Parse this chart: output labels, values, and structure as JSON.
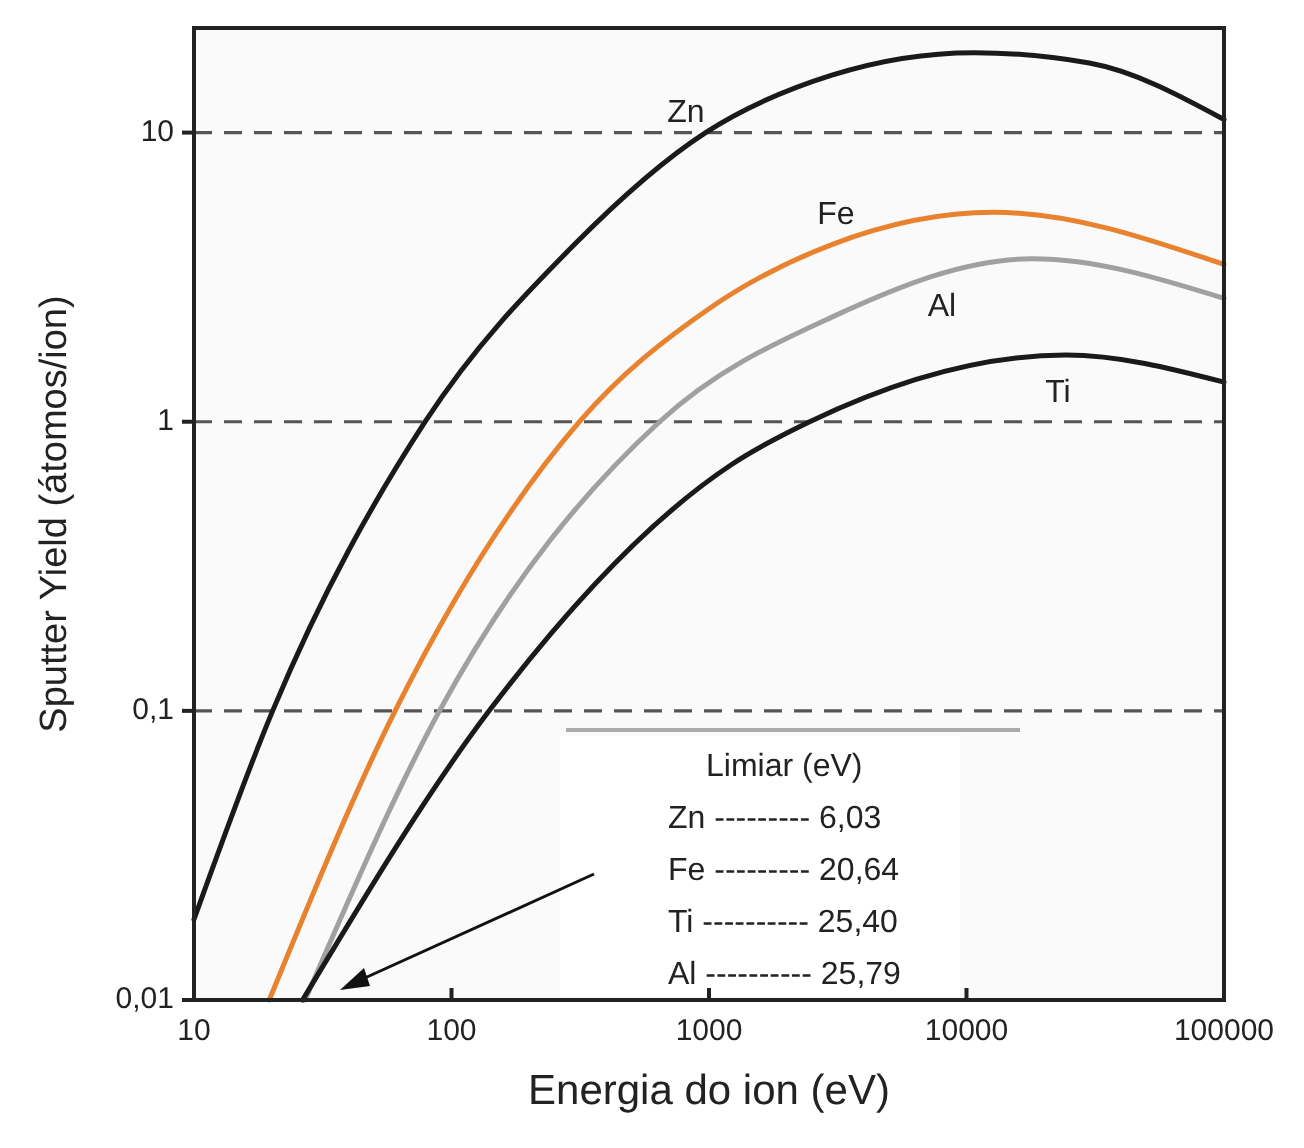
{
  "chart_data": {
    "type": "line",
    "xlabel": "Energia do ion (eV)",
    "ylabel": "Sputter Yield (átomos/ion)",
    "log": "xy",
    "xlim": [
      10,
      100000
    ],
    "ylim": [
      0.01,
      23
    ],
    "xticks": [
      10,
      100,
      1000,
      10000,
      100000
    ],
    "yticks": [
      {
        "value": 0.01,
        "label": "0,01"
      },
      {
        "value": 0.1,
        "label": "0,1"
      },
      {
        "value": 1,
        "label": "1"
      },
      {
        "value": 10,
        "label": "10"
      }
    ],
    "grid": "y",
    "marker": "none",
    "line_style": "solid",
    "series": [
      {
        "name": "Zn",
        "color": "#1a1a1a",
        "x": [
          10,
          20.2,
          79,
          300,
          970,
          3000,
          10700,
          30000,
          100000
        ],
        "values": [
          0.019,
          0.1,
          1,
          4.1,
          10,
          15.8,
          18.9,
          17.4,
          11.1
        ]
      },
      {
        "name": "Fe",
        "color": "#e8822e",
        "x": [
          19.6,
          60.4,
          314,
          1000,
          3000,
          12800,
          100000
        ],
        "values": [
          0.01,
          0.1,
          1,
          2.46,
          4.1,
          5.3,
          3.5
        ]
      },
      {
        "name": "Al",
        "color": "#a0a0a0",
        "x": [
          27,
          89.8,
          643,
          3000,
          18000,
          100000
        ],
        "values": [
          0.01,
          0.1,
          1,
          2.3,
          3.66,
          2.67
        ]
      },
      {
        "name": "Ti",
        "color": "#1a1a1a",
        "x": [
          26.4,
          140,
          1220,
          2460,
          24300,
          100000
        ],
        "values": [
          0.01,
          0.1,
          0.71,
          1,
          1.7,
          1.37
        ]
      }
    ],
    "annotations": [
      "Limiar (eV)",
      "Zn --------- 6,03",
      "Fe --------- 20,64",
      "Ti ---------- 25,40",
      "Al ---------- 25,79"
    ]
  }
}
